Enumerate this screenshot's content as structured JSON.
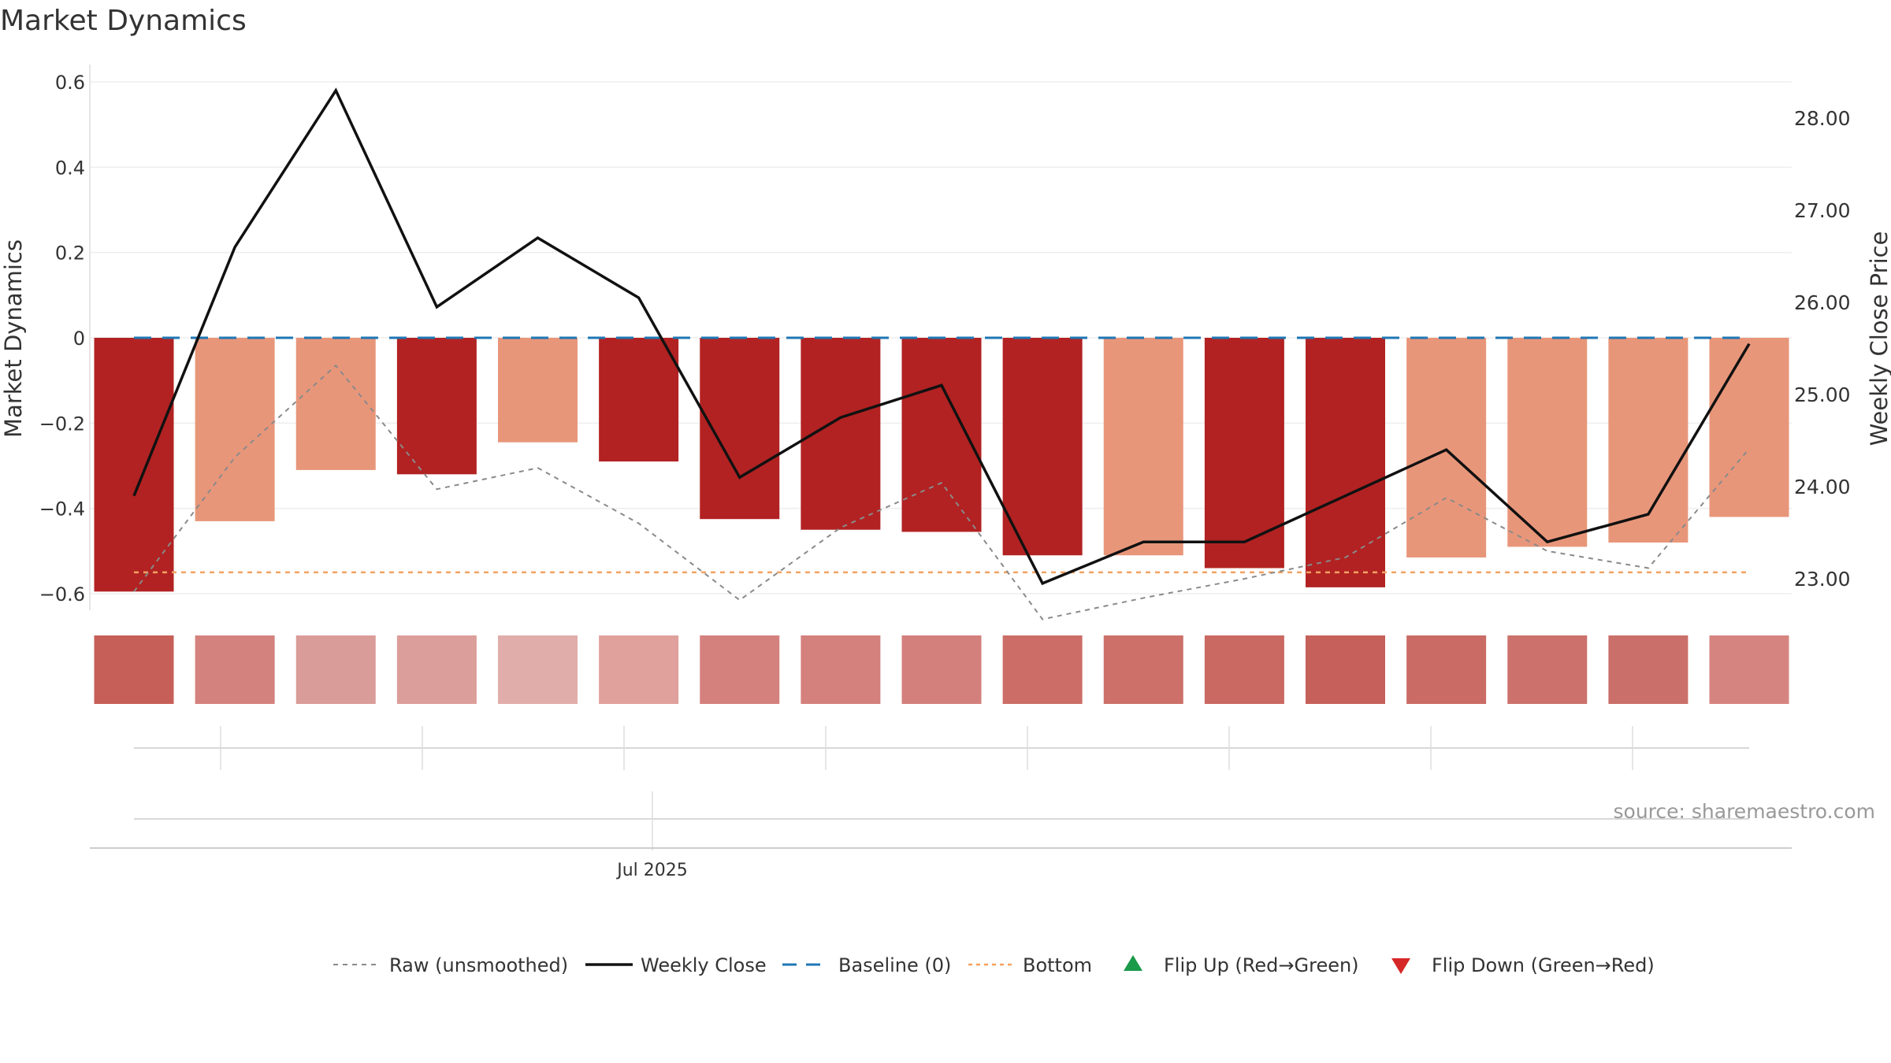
{
  "chart_data": {
    "type": "bar",
    "title": "Market Dynamics",
    "ylabel_left": "Market Dynamics",
    "ylabel_right": "Weekly Close Price",
    "source": "source: sharemaestro.com",
    "y_left_ticks": [
      0.6,
      0.4,
      0.2,
      0,
      -0.2,
      -0.4,
      -0.6
    ],
    "y_left_tick_labels": [
      "0.6",
      "0.4",
      "0.2",
      "0",
      "−0.2",
      "−0.4",
      "−0.6"
    ],
    "y_left_range": [
      -0.64,
      0.64
    ],
    "y_right_ticks": [
      28,
      27,
      26,
      25,
      24,
      23
    ],
    "y_right_tick_labels": [
      "28.00",
      "27.00",
      "26.00",
      "25.00",
      "24.00",
      "23.00"
    ],
    "y_right_range": [
      22.65,
      28.35
    ],
    "x_tick_label": "Jul 2025",
    "bar_values": [
      -0.595,
      -0.43,
      -0.31,
      -0.32,
      -0.245,
      -0.29,
      -0.425,
      -0.45,
      -0.455,
      -0.51,
      -0.51,
      -0.54,
      -0.585,
      -0.515,
      -0.49,
      -0.48,
      -0.42
    ],
    "bar_colors": [
      "#b22222",
      "#e8967a",
      "#e8967a",
      "#b22222",
      "#e8967a",
      "#b22222",
      "#b22222",
      "#b22222",
      "#b22222",
      "#b22222",
      "#e8967a",
      "#b22222",
      "#b22222",
      "#e8967a",
      "#e8967a",
      "#e8967a",
      "#e8967a"
    ],
    "strip_colors": [
      "#c65f58",
      "#d4827e",
      "#da9c99",
      "#dc9e9a",
      "#e1adaa",
      "#e0a19d",
      "#d4817d",
      "#d4807c",
      "#d37f7b",
      "#cc6d67",
      "#cd706a",
      "#ca6862",
      "#c6605a",
      "#ca6b65",
      "#cc716c",
      "#cb6f6a",
      "#d68480"
    ],
    "series": [
      {
        "name": "Raw (unsmoothed)",
        "values": [
          -0.595,
          -0.28,
          -0.065,
          -0.355,
          -0.305,
          -0.435,
          -0.615,
          -0.445,
          -0.34,
          -0.66,
          -0.61,
          -0.565,
          -0.515,
          -0.375,
          -0.5,
          -0.54,
          -0.26
        ]
      },
      {
        "name": "Weekly Close",
        "values": [
          23.9,
          26.6,
          28.3,
          25.95,
          26.7,
          26.05,
          24.1,
          24.75,
          25.1,
          22.95,
          23.4,
          23.4,
          23.9,
          24.4,
          23.4,
          23.7,
          25.55
        ]
      }
    ],
    "baseline": {
      "name": "Baseline (0)",
      "value": 0,
      "color": "#1f77b4"
    },
    "bottom": {
      "name": "Bottom",
      "value": -0.55,
      "color": "#f4a261"
    },
    "legend": [
      {
        "label": "Raw (unsmoothed)",
        "style": "dotted-gray"
      },
      {
        "label": "Weekly Close",
        "style": "solid-black"
      },
      {
        "label": "Baseline (0)",
        "style": "dashed-blue"
      },
      {
        "label": "Bottom",
        "style": "dotted-orange"
      },
      {
        "label": "Flip Up (Red→Green)",
        "style": "triangle-up-green"
      },
      {
        "label": "Flip Down (Green→Red)",
        "style": "triangle-down-red"
      }
    ],
    "legend_placement": "bottom",
    "grid": true,
    "colors": {
      "up_marker": "#1a9a4a",
      "down_marker": "#d62728",
      "raw": "#8a8a8a",
      "close": "#111111"
    }
  }
}
